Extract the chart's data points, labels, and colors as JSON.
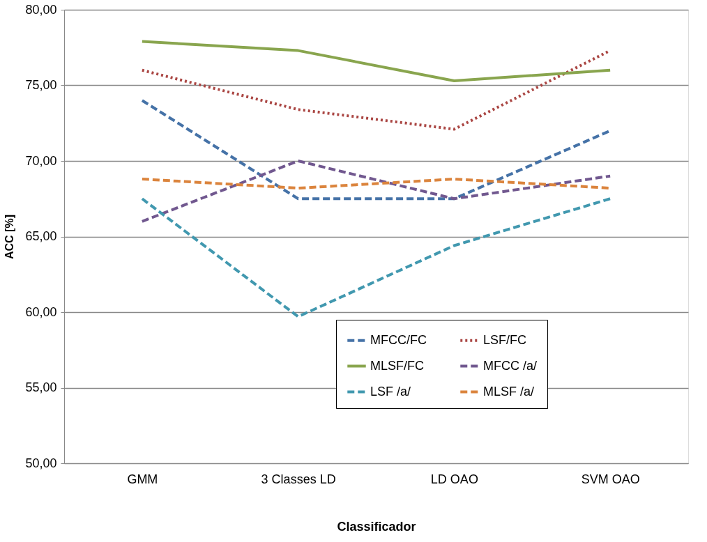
{
  "chart_data": {
    "type": "line",
    "xlabel": "Classificador",
    "ylabel": "ACC [%]",
    "categories": [
      "GMM",
      "3 Classes LD",
      "LD OAO",
      "SVM OAO"
    ],
    "ylim": [
      50,
      80
    ],
    "yticks": [
      {
        "value": 50,
        "label": "50,00"
      },
      {
        "value": 55,
        "label": "55,00"
      },
      {
        "value": 60,
        "label": "60,00"
      },
      {
        "value": 65,
        "label": "65,00"
      },
      {
        "value": 70,
        "label": "70,00"
      },
      {
        "value": 75,
        "label": "75,00"
      },
      {
        "value": 80,
        "label": "80,00"
      }
    ],
    "grid": "y",
    "legend": "bottom right",
    "marker": "none",
    "series": [
      {
        "name": "MFCC/FC",
        "color": "#4572a7",
        "line_style": "dashed",
        "values": [
          74.0,
          67.5,
          67.5,
          72.0
        ]
      },
      {
        "name": "LSF/FC",
        "color": "#aa4643",
        "line_style": "dotted",
        "values": [
          76.0,
          73.4,
          72.1,
          77.3
        ]
      },
      {
        "name": "MLSF/FC",
        "color": "#89a54e",
        "line_style": "solid",
        "values": [
          77.9,
          77.3,
          75.3,
          76.0
        ]
      },
      {
        "name": "MFCC /a/",
        "color": "#71588f",
        "line_style": "dashed",
        "values": [
          66.0,
          70.0,
          67.5,
          69.0
        ]
      },
      {
        "name": "LSF /a/",
        "color": "#4198af",
        "line_style": "dashed",
        "values": [
          67.5,
          59.7,
          64.4,
          67.5
        ]
      },
      {
        "name": "MLSF /a/",
        "color": "#db843d",
        "line_style": "dashed",
        "values": [
          68.8,
          68.2,
          68.8,
          68.2
        ]
      }
    ]
  }
}
